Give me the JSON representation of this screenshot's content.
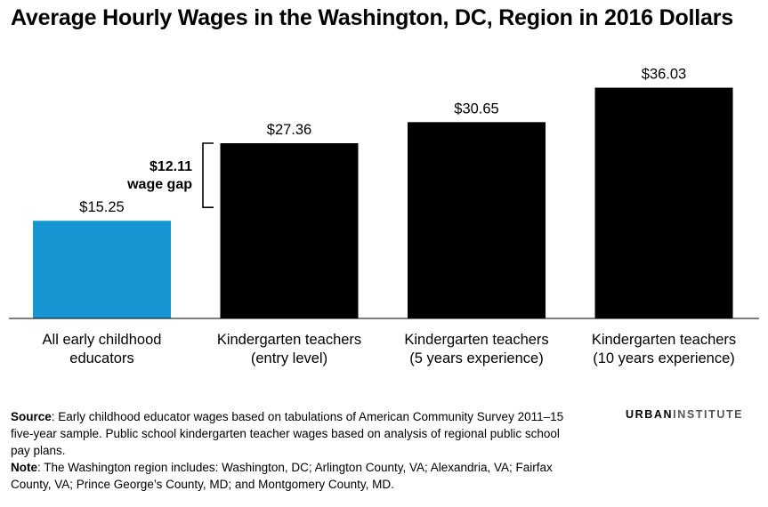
{
  "title": "Average Hourly Wages in the Washington, DC, Region in 2016 Dollars",
  "chart_data": {
    "type": "bar",
    "categories": [
      [
        "All early childhood",
        "educators"
      ],
      [
        "Kindergarten teachers",
        "(entry level)"
      ],
      [
        "Kindergarten teachers",
        "(5 years experience)"
      ],
      [
        "Kindergarten teachers",
        "(10 years experience)"
      ]
    ],
    "values": [
      15.25,
      27.36,
      30.65,
      36.03
    ],
    "value_labels": [
      "$15.25",
      "$27.36",
      "$30.65",
      "$36.03"
    ],
    "colors": [
      "#1696D2",
      "#000000",
      "#000000",
      "#000000"
    ],
    "ylim": [
      0,
      40
    ],
    "grid": false,
    "annotation": {
      "amount": "$12.11",
      "text": "wage gap",
      "from_value": 15.25,
      "to_value": 27.36
    }
  },
  "footer": {
    "source_label": "Source",
    "source_text": ": Early childhood educator wages based on tabulations of American Community Survey 2011–15 five-year sample. Public school kindergarten teacher wages based on analysis of regional public school pay plans.",
    "note_label": "Note",
    "note_text": ": The Washington region includes: Washington, DC; Arlington County, VA; Alexandria, VA; Fairfax County, VA; Prince George’s County, MD; and Montgomery County, MD."
  },
  "logo": {
    "part1": "URBAN",
    "part2": "INSTITUTE"
  }
}
